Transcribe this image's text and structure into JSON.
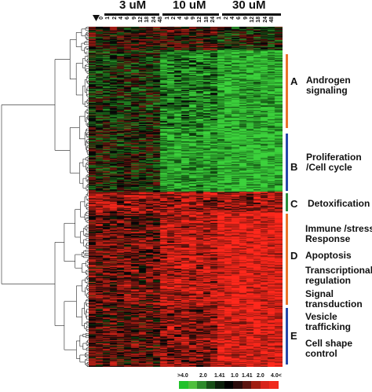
{
  "doses": [
    "3 uM",
    "10 uM",
    "30 uM"
  ],
  "timepoints": [
    "0",
    "1",
    "2",
    "4",
    "6",
    "9",
    "12",
    "18",
    "24",
    "48",
    "1",
    "2",
    "4",
    "6",
    "9",
    "12",
    "18",
    "24",
    "1",
    "2",
    "4",
    "6",
    "9",
    "12",
    "18",
    "24",
    "48"
  ],
  "marker_icon": "down-triangle-icon",
  "clusters": [
    {
      "letter": "A",
      "label": "Androgen\nsignaling",
      "color": "#e8732a"
    },
    {
      "letter": "B",
      "label": "Proliferation\n/Cell cycle",
      "color": "#2547a8"
    },
    {
      "letter": "C",
      "label": "Detoxification",
      "color": "#2a8c3c"
    },
    {
      "letter": "D",
      "label": "",
      "color": "#e8732a"
    },
    {
      "letter": "E",
      "label": "",
      "color": "#2547a8"
    }
  ],
  "functions": [
    "Immune /stress\nResponse",
    "Apoptosis",
    "Transcriptional\nregulation",
    "Signal\ntransduction",
    "Vesicle\ntrafficking",
    "Cell shape\ncontrol"
  ],
  "scale_labels": [
    ">4.0",
    "2.0",
    "1.41",
    "1.0",
    "1.41",
    "2.0",
    "4.0<"
  ],
  "scale_colors": [
    "#22c22a",
    "#4fbf3c",
    "#2d8a2a",
    "#174f17",
    "#0b1f0b",
    "#000000",
    "#2a0b0b",
    "#5c1410",
    "#a01e12",
    "#d8241a",
    "#f02a1c"
  ],
  "heatmap_colors": {
    "red": "#e8281c",
    "green": "#39c83a",
    "black": "#050505"
  }
}
